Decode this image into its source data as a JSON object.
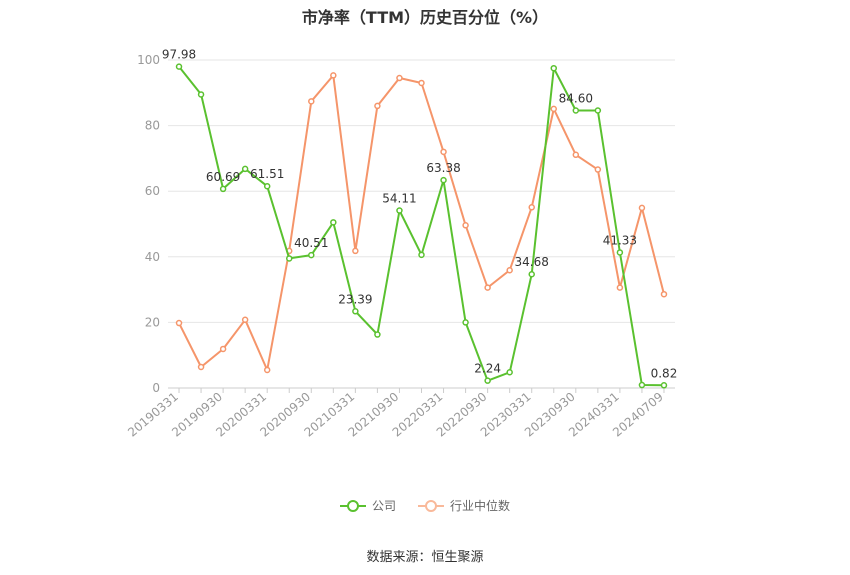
{
  "chart_data": {
    "type": "line",
    "title": "市净率（TTM）历史百分位（%）",
    "x": [
      "20190331",
      "20190630",
      "20190930",
      "20191231",
      "20200331",
      "20200630",
      "20200930",
      "20201231",
      "20210331",
      "20210630",
      "20210930",
      "20211231",
      "20220331",
      "20220630",
      "20220930",
      "20221231",
      "20230331",
      "20230630",
      "20230930",
      "20231231",
      "20240331",
      "20240630",
      "20240709"
    ],
    "x_tick_labels": [
      "20190331",
      "20190930",
      "20200331",
      "20200930",
      "20210331",
      "20210930",
      "20220331",
      "20220930",
      "20230331",
      "20230930",
      "20240331",
      "20240709"
    ],
    "y_ticks": [
      "0",
      "20",
      "40",
      "60",
      "80",
      "100"
    ],
    "ylim": [
      0,
      100
    ],
    "grid": true,
    "legend_position": "bottom",
    "series": [
      {
        "name": "公司",
        "color": "#5ac12f",
        "values": [
          97.98,
          89.5,
          60.69,
          66.8,
          61.51,
          39.5,
          40.51,
          50.5,
          23.39,
          16.3,
          54.11,
          40.6,
          63.38,
          20.0,
          2.24,
          4.8,
          34.68,
          97.5,
          84.6,
          84.6,
          41.33,
          0.9,
          0.82
        ],
        "data_labels": [
          {
            "index": 0,
            "text": "97.98"
          },
          {
            "index": 2,
            "text": "60.69"
          },
          {
            "index": 4,
            "text": "61.51"
          },
          {
            "index": 6,
            "text": "40.51"
          },
          {
            "index": 8,
            "text": "23.39"
          },
          {
            "index": 10,
            "text": "54.11"
          },
          {
            "index": 12,
            "text": "63.38"
          },
          {
            "index": 14,
            "text": "2.24"
          },
          {
            "index": 16,
            "text": "34.68"
          },
          {
            "index": 18,
            "text": "84.60"
          },
          {
            "index": 20,
            "text": "41.33"
          },
          {
            "index": 22,
            "text": "0.82"
          }
        ]
      },
      {
        "name": "行业中位数",
        "color": "#f5956a",
        "values": [
          19.8,
          6.4,
          11.9,
          20.8,
          5.5,
          41.8,
          87.4,
          95.3,
          41.8,
          86.0,
          94.5,
          93.0,
          72.0,
          49.6,
          30.6,
          35.9,
          55.1,
          85.1,
          71.1,
          66.6,
          30.6,
          54.9,
          28.6
        ]
      }
    ]
  },
  "source": "数据来源：恒生聚源"
}
